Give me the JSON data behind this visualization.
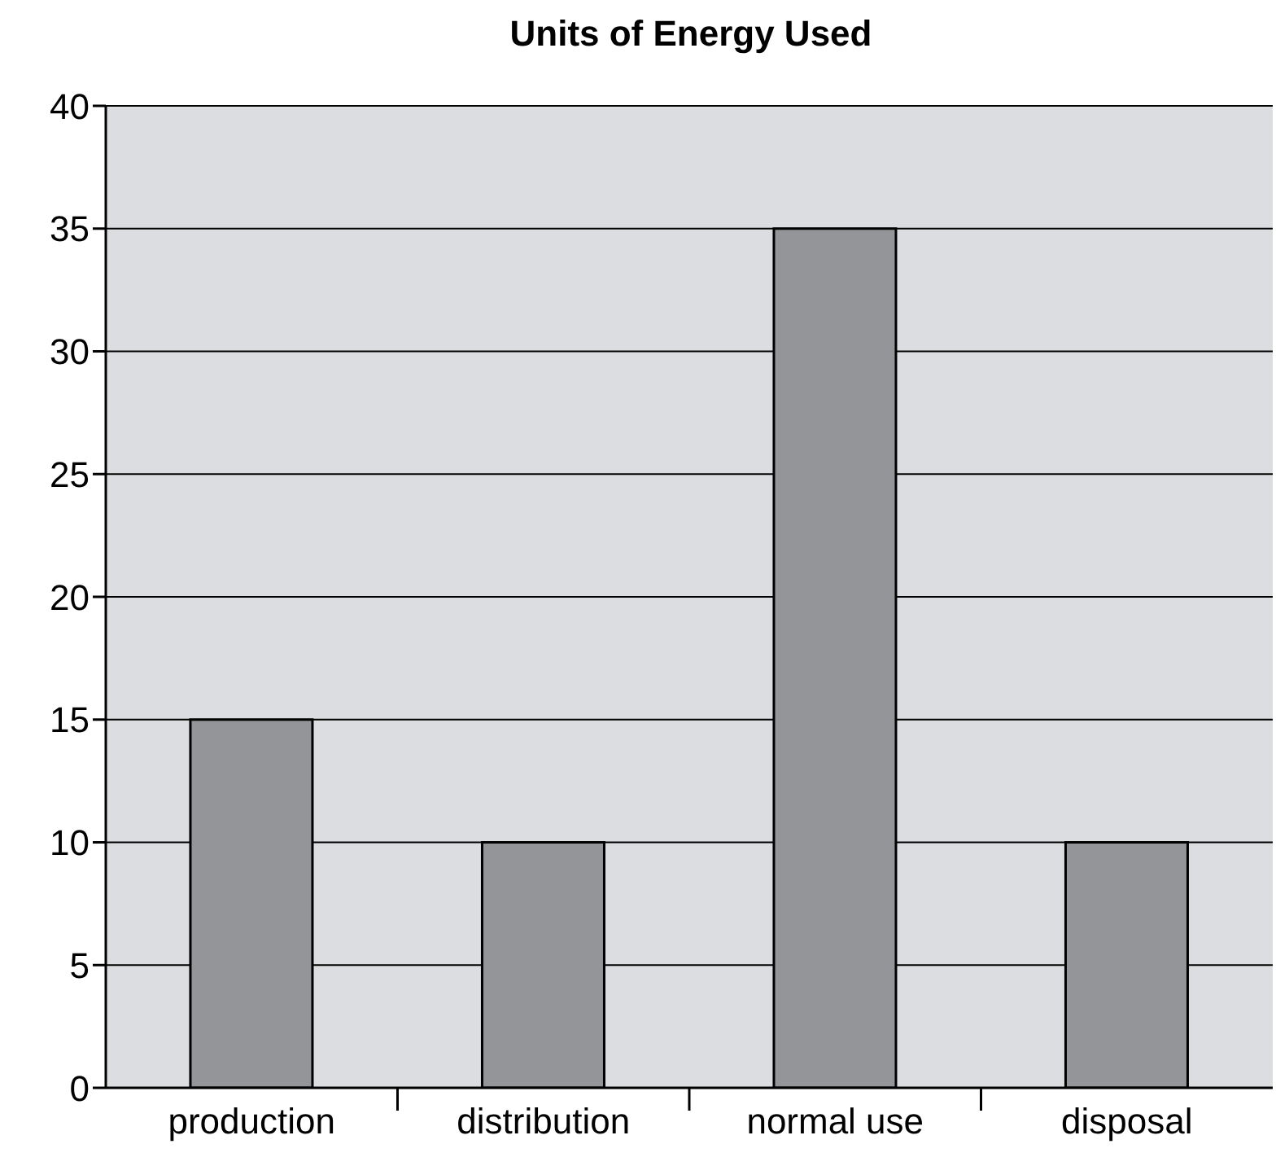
{
  "chart_data": {
    "type": "bar",
    "title": "Units of Energy Used",
    "categories": [
      "production",
      "distribution",
      "normal use",
      "disposal"
    ],
    "values": [
      15,
      10,
      35,
      10
    ],
    "color": "#939598",
    "ylim": [
      0,
      40
    ],
    "yticks": [
      0,
      5,
      10,
      15,
      20,
      25,
      30,
      35,
      40
    ],
    "grid": "y"
  }
}
